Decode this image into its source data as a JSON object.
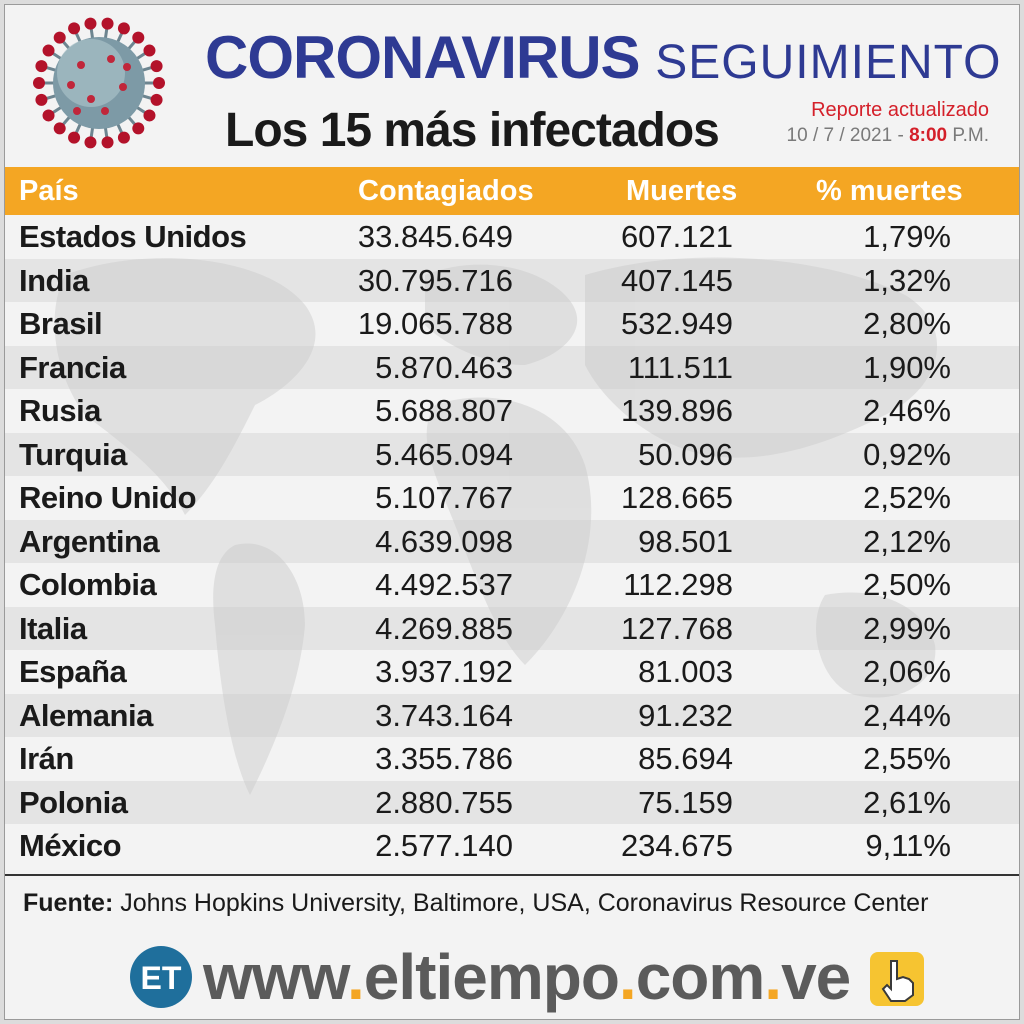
{
  "header": {
    "title_main": "CORONAVIRUS",
    "title_second": "SEGUIMIENTO",
    "subtitle_prefix": "Los",
    "subtitle_number": "15",
    "subtitle_suffix": "más infectados",
    "report_label": "Reporte actualizado",
    "report_date": "10 / 7 / 2021 -",
    "report_time": "8:00",
    "report_ampm": "P.M."
  },
  "colors": {
    "title_blue": "#2e3a93",
    "header_orange": "#f4a623",
    "report_red": "#d4202a",
    "logo_blue": "#1f6f9c"
  },
  "chart_data": {
    "type": "table",
    "columns": [
      "País",
      "Contagiados",
      "Muertes",
      "% muertes"
    ],
    "rows": [
      [
        "Estados Unidos",
        "33.845.649",
        "607.121",
        "1,79%"
      ],
      [
        "India",
        "30.795.716",
        "407.145",
        "1,32%"
      ],
      [
        "Brasil",
        "19.065.788",
        "532.949",
        "2,80%"
      ],
      [
        "Francia",
        "5.870.463",
        "111.511",
        "1,90%"
      ],
      [
        "Rusia",
        "5.688.807",
        "139.896",
        "2,46%"
      ],
      [
        "Turquia",
        "5.465.094",
        "50.096",
        "0,92%"
      ],
      [
        "Reino Unido",
        "5.107.767",
        "128.665",
        "2,52%"
      ],
      [
        "Argentina",
        "4.639.098",
        "98.501",
        "2,12%"
      ],
      [
        "Colombia",
        "4.492.537",
        "112.298",
        "2,50%"
      ],
      [
        "Italia",
        "4.269.885",
        "127.768",
        "2,99%"
      ],
      [
        "España",
        "3.937.192",
        "81.003",
        "2,06%"
      ],
      [
        "Alemania",
        "3.743.164",
        "91.232",
        "2,44%"
      ],
      [
        "Irán",
        "3.355.786",
        "85.694",
        "2,55%"
      ],
      [
        "Polonia",
        "2.880.755",
        "75.159",
        "2,61%"
      ],
      [
        "México",
        "2.577.140",
        "234.675",
        "9,11%"
      ]
    ]
  },
  "footer": {
    "source_label": "Fuente:",
    "source_text": "Johns Hopkins University, Baltimore, USA, Coronavirus Resource Center",
    "logo_text": "ET",
    "url_part1": "www",
    "url_part2": "eltiempo",
    "url_part3": "com",
    "url_part4": "ve",
    "url_dot": ".",
    "hand_icon": "pointing-hand-icon"
  }
}
